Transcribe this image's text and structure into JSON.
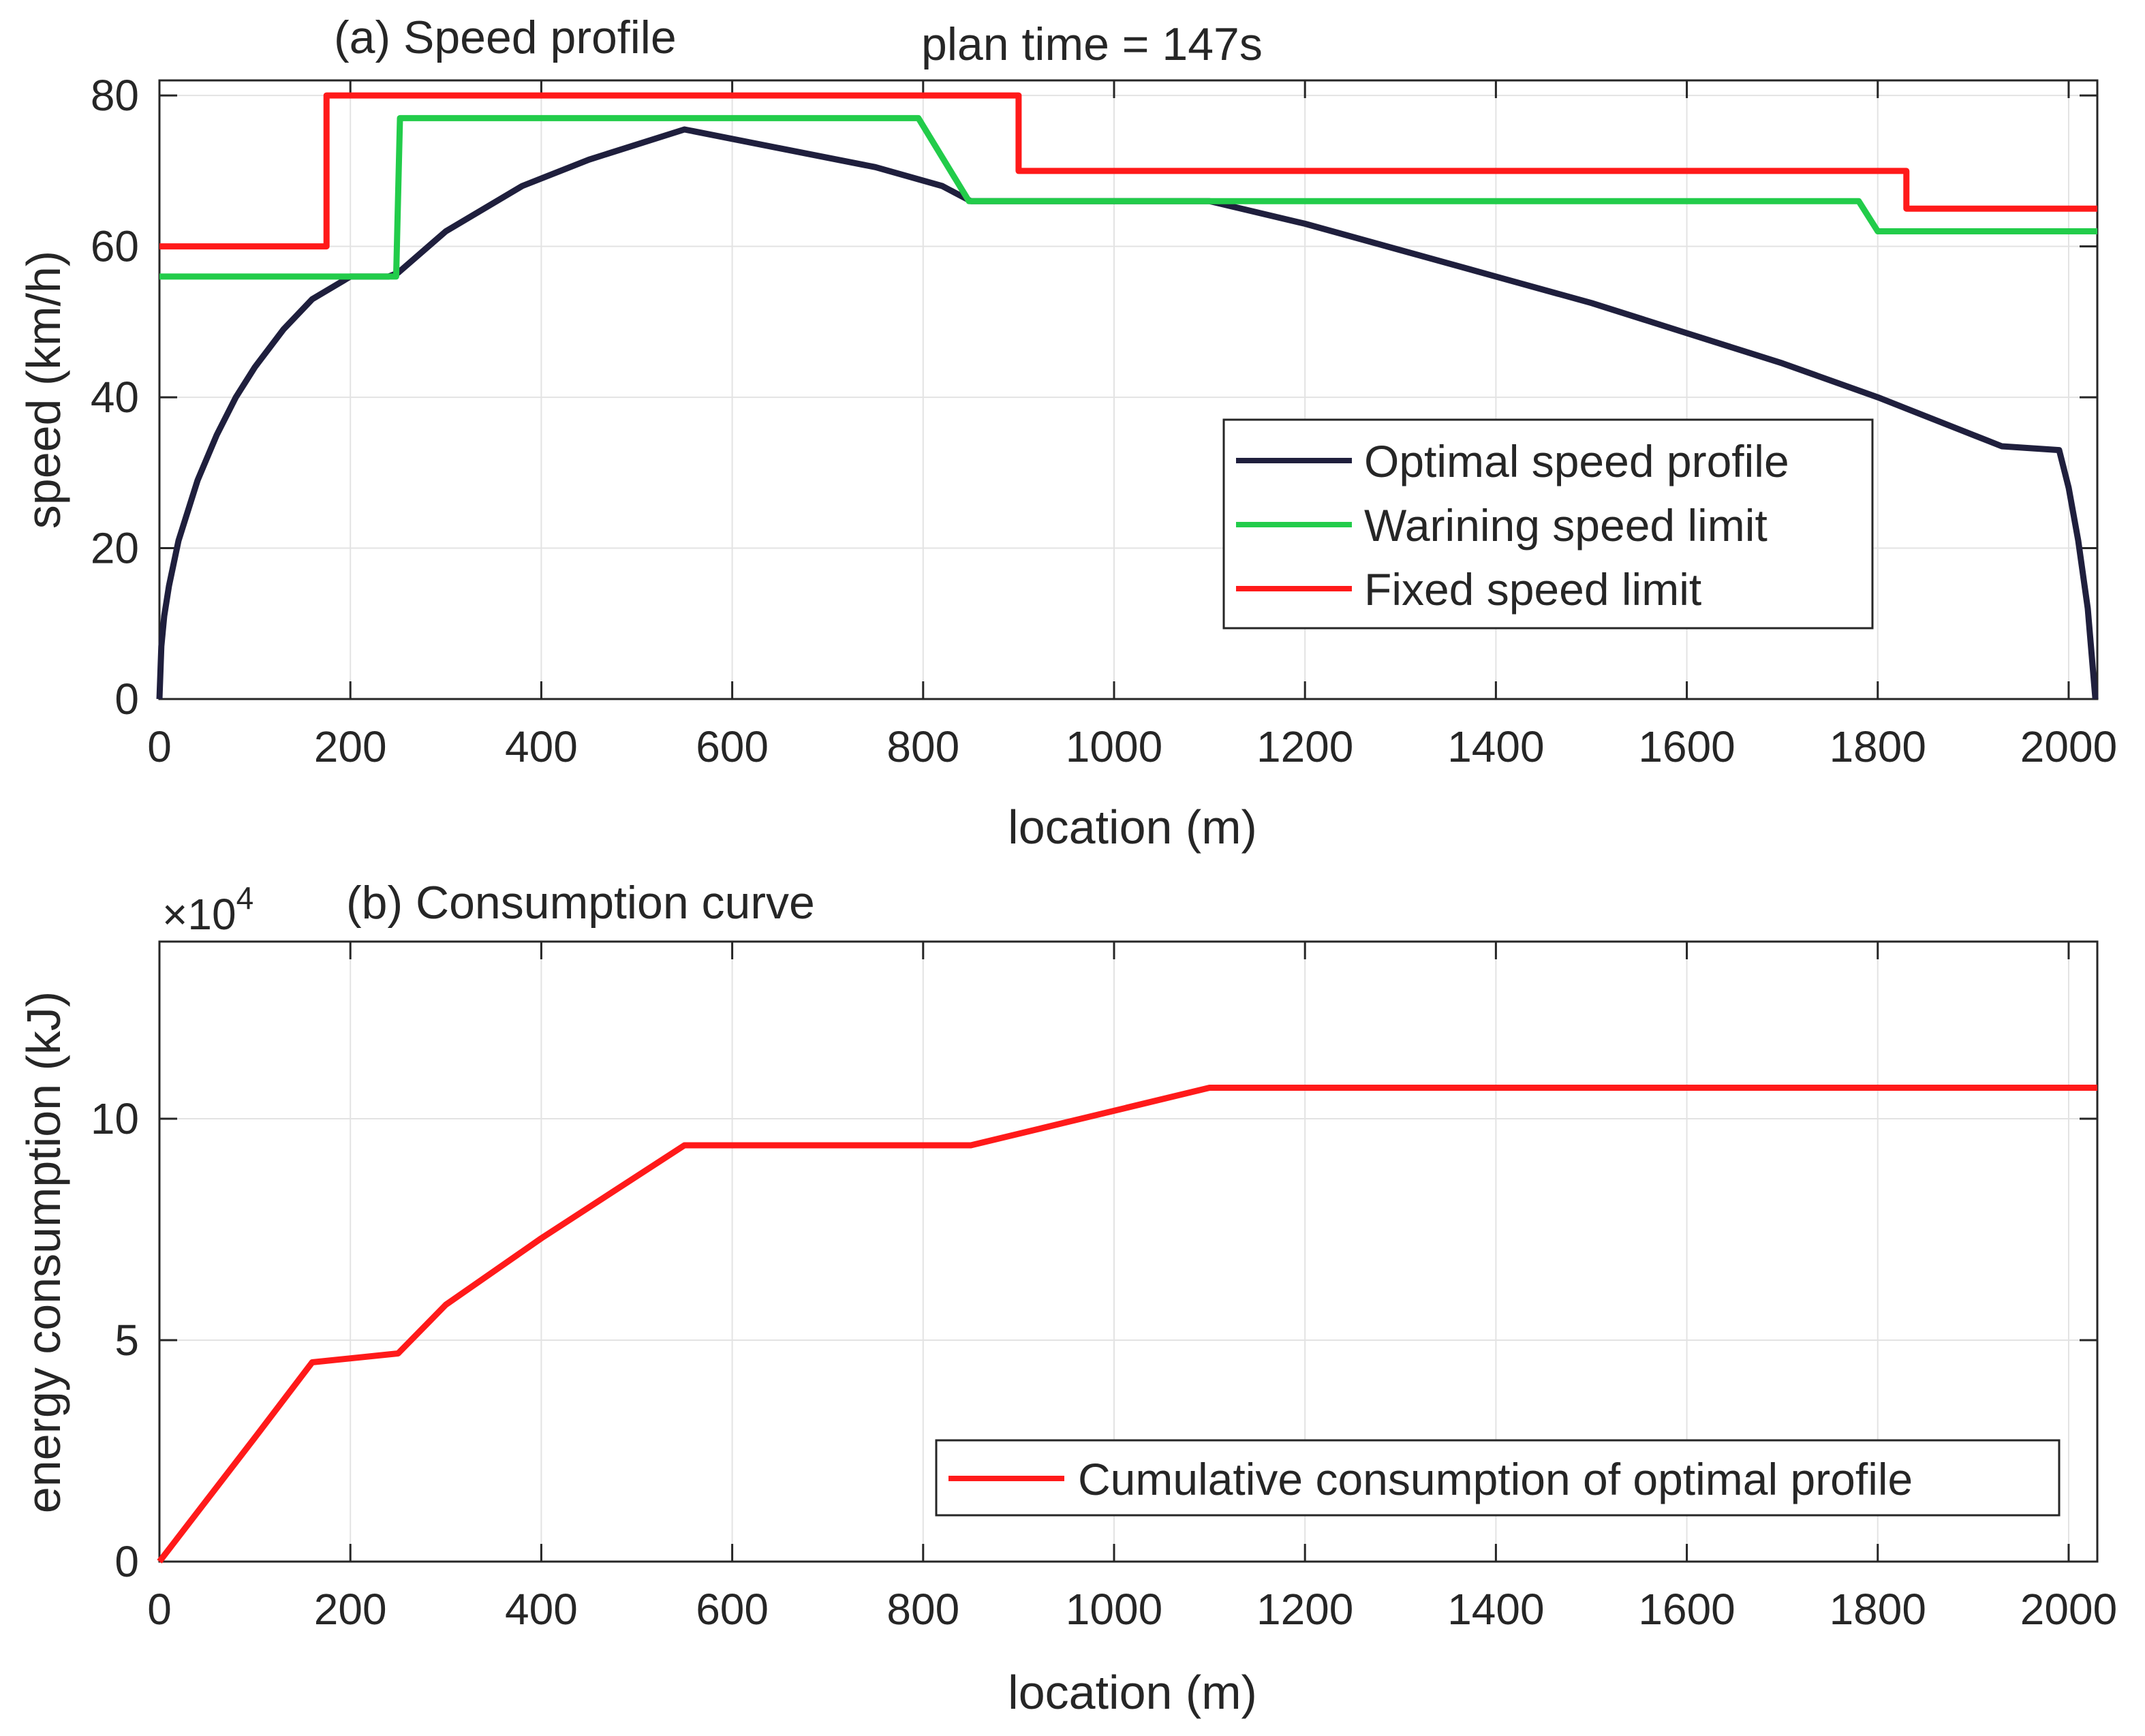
{
  "figure_title": "plan time = 147s",
  "chart_data": [
    {
      "type": "line",
      "title": "(a) Speed profile",
      "xlabel": "location (m)",
      "ylabel": "speed (km/h)",
      "xlim": [
        0,
        2030
      ],
      "ylim": [
        0,
        82
      ],
      "xticks": [
        0,
        200,
        400,
        600,
        800,
        1000,
        1200,
        1400,
        1600,
        1800,
        2000
      ],
      "yticks": [
        0,
        20,
        40,
        60,
        80
      ],
      "xtick_labels": [
        "0",
        "200",
        "400",
        "600",
        "800",
        "1000",
        "1200",
        "1400",
        "1600",
        "1800",
        "2000"
      ],
      "ytick_labels": [
        "0",
        "20",
        "40",
        "60",
        "80"
      ],
      "grid": true,
      "legend_position": "right",
      "series": [
        {
          "name": "Optimal speed profile",
          "color": "#1f1f3d",
          "x": [
            0,
            2,
            5,
            10,
            20,
            40,
            60,
            80,
            100,
            130,
            160,
            200,
            240,
            250,
            300,
            380,
            450,
            550,
            650,
            750,
            820,
            850,
            950,
            1100,
            1200,
            1300,
            1400,
            1500,
            1600,
            1700,
            1800,
            1900,
            1930,
            1990,
            2000,
            2010,
            2020,
            2028
          ],
          "values": [
            0,
            7,
            11,
            15,
            21,
            29,
            35,
            40,
            44,
            49,
            53,
            56,
            56,
            56.5,
            62,
            68,
            71.5,
            75.5,
            73,
            70.5,
            68,
            66,
            66,
            66,
            63,
            59.5,
            56,
            52.5,
            48.5,
            44.5,
            40,
            35,
            33.5,
            33,
            28,
            21,
            12,
            0
          ]
        },
        {
          "name": "Warining speed limit",
          "color": "#22cc4a",
          "x": [
            0,
            248,
            252,
            795,
            848,
            1780,
            1800,
            2030
          ],
          "values": [
            56,
            56,
            77,
            77,
            66,
            66,
            62,
            62
          ]
        },
        {
          "name": "Fixed speed limit",
          "color": "#ff1a1a",
          "x": [
            0,
            175,
            175,
            900,
            900,
            1830,
            1830,
            2030
          ],
          "values": [
            60,
            60,
            80,
            80,
            70,
            70,
            65,
            65
          ]
        }
      ]
    },
    {
      "type": "line",
      "title": "(b) Consumption curve",
      "xlabel": "location (m)",
      "ylabel": "energy consumption (kJ)",
      "y_exponent_label": "×10",
      "y_exponent_power": "4",
      "xlim": [
        0,
        2030
      ],
      "ylim": [
        0,
        14
      ],
      "xticks": [
        0,
        200,
        400,
        600,
        800,
        1000,
        1200,
        1400,
        1600,
        1800,
        2000
      ],
      "yticks": [
        0,
        5,
        10
      ],
      "xtick_labels": [
        "0",
        "200",
        "400",
        "600",
        "800",
        "1000",
        "1200",
        "1400",
        "1600",
        "1800",
        "2000"
      ],
      "ytick_labels": [
        "0",
        "5",
        "10"
      ],
      "grid": true,
      "legend_position": "bottom-right",
      "series": [
        {
          "name": "Cumulative consumption of optimal profile",
          "color": "#ff1a1a",
          "x": [
            0,
            50,
            100,
            160,
            250,
            300,
            400,
            550,
            850,
            1100,
            2030
          ],
          "values": [
            0,
            1.4,
            2.8,
            4.5,
            4.7,
            5.8,
            7.3,
            9.4,
            9.4,
            10.7,
            10.7
          ]
        }
      ]
    }
  ]
}
